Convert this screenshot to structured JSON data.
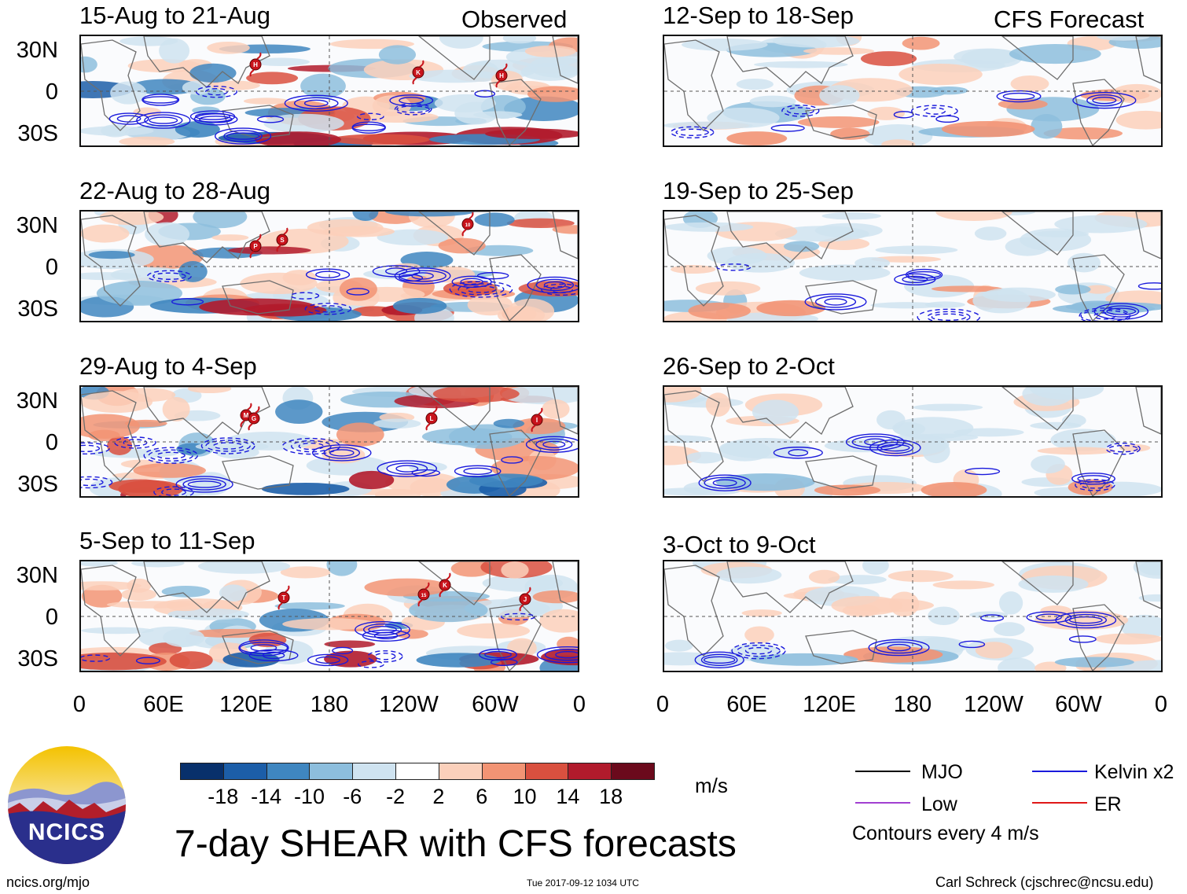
{
  "observed_label": "Observed",
  "forecast_label": "CFS Forecast",
  "observed_panels": [
    {
      "title": "15-Aug to 21-Aug",
      "storms": [
        "H",
        "K",
        "H"
      ]
    },
    {
      "title": "22-Aug to 28-Aug",
      "storms": [
        "P",
        "S",
        "10"
      ]
    },
    {
      "title": "29-Aug to 4-Sep",
      "storms": [
        "M",
        "G",
        "L",
        "I"
      ]
    },
    {
      "title": "5-Sep to 11-Sep",
      "storms": [
        "T",
        "15",
        "K",
        "J"
      ]
    }
  ],
  "forecast_panels": [
    {
      "title": "12-Sep to 18-Sep"
    },
    {
      "title": "19-Sep to 25-Sep"
    },
    {
      "title": "26-Sep to 2-Oct"
    },
    {
      "title": "3-Oct to 9-Oct"
    }
  ],
  "lat_labels": [
    "30N",
    "0",
    "30S"
  ],
  "lon_labels": [
    "0",
    "60E",
    "120E",
    "180",
    "120W",
    "60W",
    "0"
  ],
  "colorbar": {
    "labels": [
      "-18",
      "-14",
      "-10",
      "-6",
      "-2",
      "2",
      "6",
      "10",
      "14",
      "18"
    ],
    "colors": [
      "#08306b",
      "#1c5ea8",
      "#3f86c0",
      "#8dbedd",
      "#cfe3f0",
      "#ffffff",
      "#fbd0bb",
      "#f29474",
      "#d9503f",
      "#b11b2c",
      "#6b0a1c"
    ],
    "units": "m/s"
  },
  "legend": [
    {
      "label": "MJO",
      "color": "#000000"
    },
    {
      "label": "Kelvin x2",
      "color": "#1a1adc"
    },
    {
      "label": "Low",
      "color": "#a23fd1"
    },
    {
      "label": "ER",
      "color": "#e01818"
    }
  ],
  "contour_note": "Contours every 4 m/s",
  "title": "7-day SHEAR with CFS forecasts",
  "logo_text": "NCICS",
  "footer_left": "ncics.org/mjo",
  "footer_mid": "Tue 2017-09-12 1034 UTC",
  "footer_right": "Carl Schreck (cjschrec@ncsu.edu)"
}
